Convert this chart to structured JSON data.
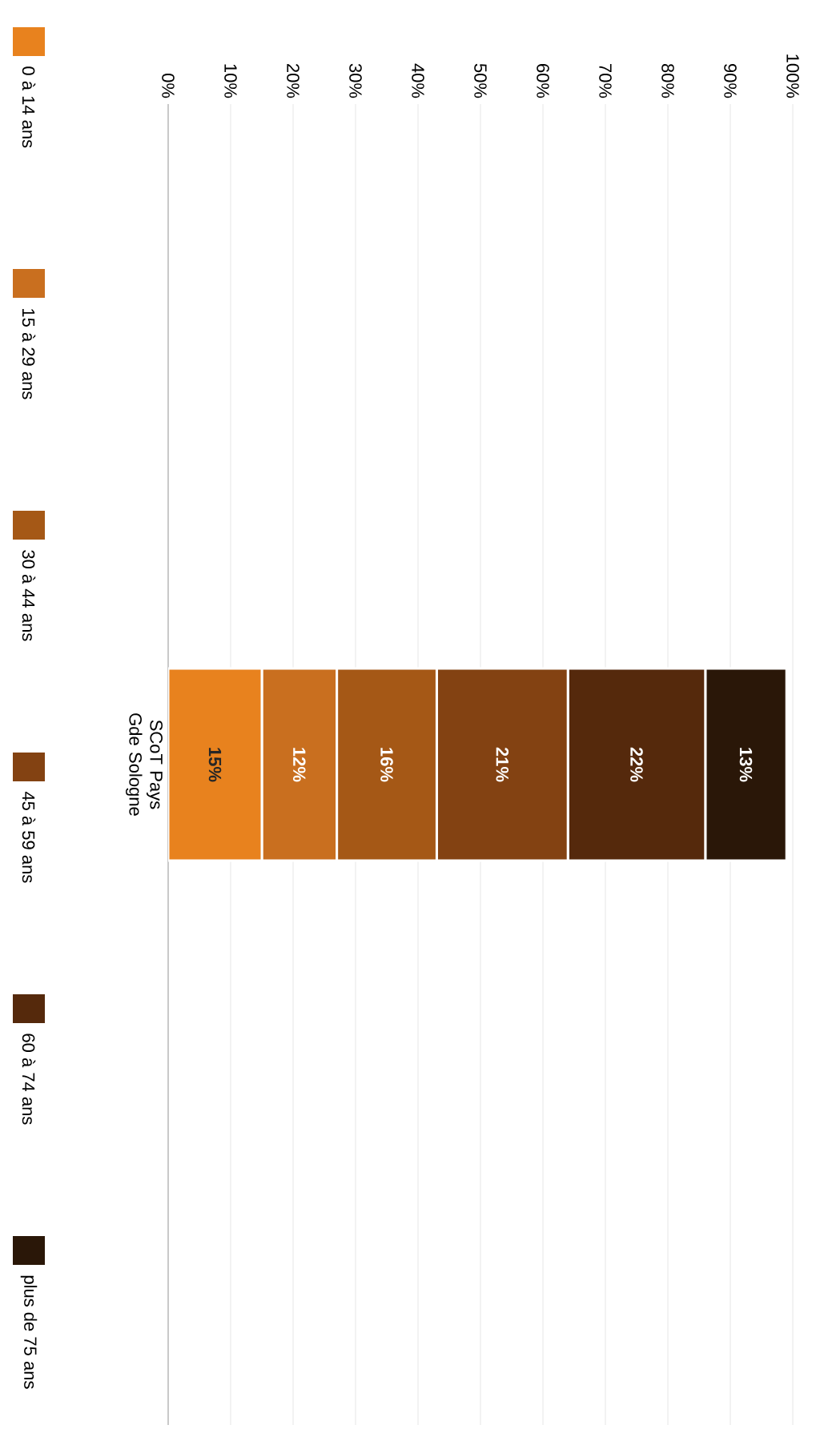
{
  "chart_data": {
    "type": "bar",
    "stacked": true,
    "orientation": "horizontal",
    "categories": [
      "SCoT Pays Gde Sologne"
    ],
    "series": [
      {
        "name": "0 à 14 ans",
        "color": "#e8821e",
        "values": [
          15
        ],
        "value_labels": [
          "15%"
        ]
      },
      {
        "name": "15 à 29 ans",
        "color": "#c96f1f",
        "values": [
          12
        ],
        "value_labels": [
          "12%"
        ]
      },
      {
        "name": "30 à 44 ans",
        "color": "#a55816",
        "values": [
          16
        ],
        "value_labels": [
          "16%"
        ]
      },
      {
        "name": "45 à 59 ans",
        "color": "#834212",
        "values": [
          21
        ],
        "value_labels": [
          "21%"
        ]
      },
      {
        "name": "60 à 74 ans",
        "color": "#55290c",
        "values": [
          22
        ],
        "value_labels": [
          "22%"
        ]
      },
      {
        "name": "plus de 75 ans",
        "color": "#2a1708",
        "values": [
          13
        ],
        "value_labels": [
          "13%"
        ]
      }
    ],
    "xlim": [
      0,
      100
    ],
    "xticks": [
      {
        "value": 0,
        "label": "0%"
      },
      {
        "value": 10,
        "label": "10%"
      },
      {
        "value": 20,
        "label": "20%"
      },
      {
        "value": 30,
        "label": "30%"
      },
      {
        "value": 40,
        "label": "40%"
      },
      {
        "value": 50,
        "label": "50%"
      },
      {
        "value": 60,
        "label": "60%"
      },
      {
        "value": 70,
        "label": "70%"
      },
      {
        "value": 80,
        "label": "80%"
      },
      {
        "value": 90,
        "label": "90%"
      },
      {
        "value": 100,
        "label": "100%"
      }
    ],
    "grid": "x",
    "legend": "left"
  }
}
